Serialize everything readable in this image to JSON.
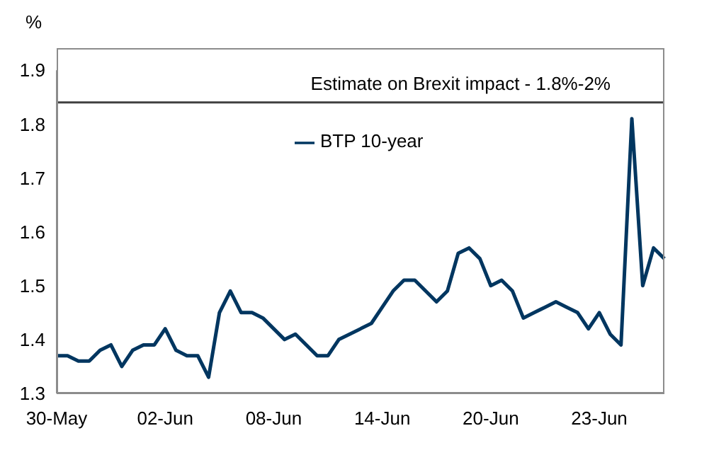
{
  "chart_data": {
    "type": "line",
    "ylabel": "%",
    "categories": [
      "30-May",
      null,
      null,
      null,
      null,
      null,
      null,
      null,
      null,
      null,
      "02-Jun",
      null,
      null,
      null,
      null,
      null,
      null,
      null,
      null,
      null,
      "08-Jun",
      null,
      null,
      null,
      null,
      null,
      null,
      null,
      null,
      null,
      "14-Jun",
      null,
      null,
      null,
      null,
      null,
      null,
      null,
      null,
      null,
      "20-Jun",
      null,
      null,
      null,
      null,
      null,
      null,
      null,
      null,
      null,
      "23-Jun",
      null,
      null,
      null,
      null,
      null,
      null
    ],
    "series": [
      {
        "name": "BTP 10-year",
        "color": "#003660",
        "values": [
          1.37,
          1.37,
          1.36,
          1.36,
          1.38,
          1.39,
          1.35,
          1.38,
          1.39,
          1.39,
          1.42,
          1.38,
          1.37,
          1.37,
          1.33,
          1.45,
          1.49,
          1.45,
          1.45,
          1.44,
          1.42,
          1.4,
          1.41,
          1.39,
          1.37,
          1.37,
          1.4,
          1.41,
          1.42,
          1.43,
          1.46,
          1.49,
          1.51,
          1.51,
          1.49,
          1.47,
          1.49,
          1.56,
          1.57,
          1.55,
          1.5,
          1.51,
          1.49,
          1.44,
          1.45,
          1.46,
          1.47,
          1.46,
          1.45,
          1.42,
          1.45,
          1.41,
          1.39,
          1.81,
          1.5,
          1.57,
          1.55
        ]
      }
    ],
    "ylim": [
      1.3,
      1.9
    ],
    "yticks": [
      1.3,
      1.4,
      1.5,
      1.6,
      1.7,
      1.8,
      1.9
    ],
    "ref_lines": [
      {
        "axis": "y",
        "value": 1.84,
        "label": "Estimate on Brexit impact - 1.8%-2%",
        "color": "#404040"
      }
    ],
    "legend": "top",
    "grid": false,
    "marker": "none",
    "line_style": "solid"
  }
}
